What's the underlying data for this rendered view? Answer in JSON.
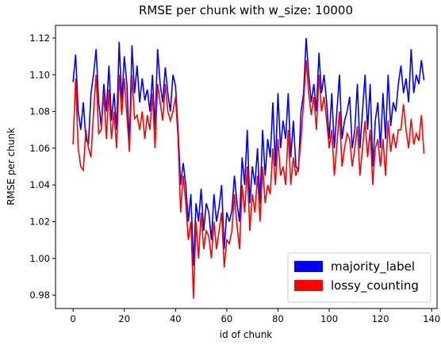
{
  "chart_data": {
    "type": "line",
    "title": "RMSE per chunk with w_size: 10000",
    "x_label": "id of chunk",
    "y_label": "RMSE per chunk",
    "x": [
      0,
      1,
      2,
      3,
      4,
      5,
      6,
      7,
      8,
      9,
      10,
      11,
      12,
      13,
      14,
      15,
      16,
      17,
      18,
      19,
      20,
      21,
      22,
      23,
      24,
      25,
      26,
      27,
      28,
      29,
      30,
      31,
      32,
      33,
      34,
      35,
      36,
      37,
      38,
      39,
      40,
      41,
      42,
      43,
      44,
      45,
      46,
      47,
      48,
      49,
      50,
      51,
      52,
      53,
      54,
      55,
      56,
      57,
      58,
      59,
      60,
      61,
      62,
      63,
      64,
      65,
      66,
      67,
      68,
      69,
      70,
      71,
      72,
      73,
      74,
      75,
      76,
      77,
      78,
      79,
      80,
      81,
      82,
      83,
      84,
      85,
      86,
      87,
      88,
      89,
      90,
      91,
      92,
      93,
      94,
      95,
      96,
      97,
      98,
      99,
      100,
      101,
      102,
      103,
      104,
      105,
      106,
      107,
      108,
      109,
      110,
      111,
      112,
      113,
      114,
      115,
      116,
      117,
      118,
      119,
      120,
      121,
      122,
      123,
      124,
      125,
      126,
      127,
      128,
      129,
      130,
      131,
      132,
      133,
      134,
      135,
      136,
      137
    ],
    "series": [
      {
        "name": "majority_label",
        "color": "#0000ff",
        "values": [
          1.096,
          1.111,
          1.08,
          1.07,
          1.085,
          1.065,
          1.062,
          1.09,
          1.1,
          1.114,
          1.085,
          1.072,
          1.095,
          1.08,
          1.105,
          1.075,
          1.09,
          1.07,
          1.118,
          1.085,
          1.11,
          1.095,
          1.062,
          1.116,
          1.09,
          1.105,
          1.085,
          1.098,
          1.086,
          1.092,
          1.08,
          1.1,
          1.07,
          1.114,
          1.095,
          1.085,
          1.104,
          1.09,
          1.08,
          1.1,
          1.094,
          1.07,
          1.04,
          1.052,
          1.04,
          1.02,
          1.035,
          0.996,
          1.03,
          1.02,
          1.038,
          1.015,
          1.03,
          1.025,
          1.01,
          1.035,
          1.02,
          1.028,
          1.04,
          1.005,
          1.025,
          1.02,
          1.026,
          1.045,
          1.03,
          1.02,
          1.055,
          1.04,
          1.07,
          1.03,
          1.05,
          1.04,
          1.06,
          1.03,
          1.07,
          1.045,
          1.065,
          1.055,
          1.085,
          1.05,
          1.09,
          1.06,
          1.075,
          1.065,
          1.09,
          1.055,
          1.075,
          1.05,
          1.048,
          1.08,
          1.09,
          1.12,
          1.1,
          1.085,
          1.095,
          1.08,
          1.112,
          1.09,
          1.1,
          1.085,
          1.065,
          1.09,
          1.06,
          1.08,
          1.1,
          1.065,
          1.075,
          1.08,
          1.088,
          1.06,
          1.07,
          1.095,
          1.06,
          1.08,
          1.1,
          1.07,
          1.095,
          1.05,
          1.075,
          1.085,
          1.06,
          1.09,
          1.065,
          1.1,
          1.072,
          1.085,
          1.08,
          1.095,
          1.105,
          1.09,
          1.098,
          1.085,
          1.114,
          1.09,
          1.1,
          1.095,
          1.108,
          1.097
        ]
      },
      {
        "name": "lossy_counting",
        "color": "#ff0000",
        "values": [
          1.062,
          1.098,
          1.06,
          1.05,
          1.048,
          1.07,
          1.06,
          1.055,
          1.08,
          1.1,
          1.068,
          1.07,
          1.09,
          1.065,
          1.092,
          1.065,
          1.08,
          1.06,
          1.1,
          1.078,
          1.098,
          1.078,
          1.058,
          1.1,
          1.076,
          1.078,
          1.07,
          1.08,
          1.065,
          1.078,
          1.07,
          1.09,
          1.06,
          1.095,
          1.085,
          1.075,
          1.095,
          1.08,
          1.075,
          1.08,
          1.088,
          1.065,
          1.025,
          1.045,
          1.03,
          1.01,
          1.02,
          0.978,
          1.02,
          1.0,
          1.025,
          1.005,
          1.015,
          1.012,
          1.0,
          1.02,
          1.005,
          1.015,
          1.025,
          0.995,
          1.01,
          1.008,
          1.015,
          1.035,
          1.018,
          1.005,
          1.04,
          1.025,
          1.05,
          1.015,
          1.035,
          1.025,
          1.045,
          1.02,
          1.05,
          1.03,
          1.04,
          1.035,
          1.06,
          1.04,
          1.065,
          1.045,
          1.05,
          1.04,
          1.07,
          1.04,
          1.055,
          1.045,
          1.05,
          1.065,
          1.085,
          1.108,
          1.09,
          1.078,
          1.088,
          1.07,
          1.1,
          1.08,
          1.088,
          1.075,
          1.06,
          1.07,
          1.045,
          1.062,
          1.08,
          1.05,
          1.06,
          1.068,
          1.065,
          1.05,
          1.06,
          1.072,
          1.045,
          1.06,
          1.075,
          1.055,
          1.07,
          1.04,
          1.06,
          1.065,
          1.05,
          1.065,
          1.045,
          1.075,
          1.058,
          1.068,
          1.06,
          1.07,
          1.07,
          1.084,
          1.07,
          1.06,
          1.076,
          1.062,
          1.068,
          1.064,
          1.078,
          1.057
        ]
      }
    ],
    "xlim": [
      -6.85,
      142.1
    ],
    "xticks": [
      0,
      20,
      40,
      60,
      80,
      100,
      120,
      140
    ],
    "ylim": [
      0.9727,
      1.1269
    ],
    "yticks": [
      {
        "value": 0.98,
        "label": "0.98"
      },
      {
        "value": 1.0,
        "label": "1.00"
      },
      {
        "value": 1.02,
        "label": "1.02"
      },
      {
        "value": 1.04,
        "label": "1.04"
      },
      {
        "value": 1.06,
        "label": "1.06"
      },
      {
        "value": 1.08,
        "label": "1.08"
      },
      {
        "value": 1.1,
        "label": "1.10"
      },
      {
        "value": 1.12,
        "label": "1.12"
      }
    ],
    "grid": false,
    "legend": "lower right"
  }
}
